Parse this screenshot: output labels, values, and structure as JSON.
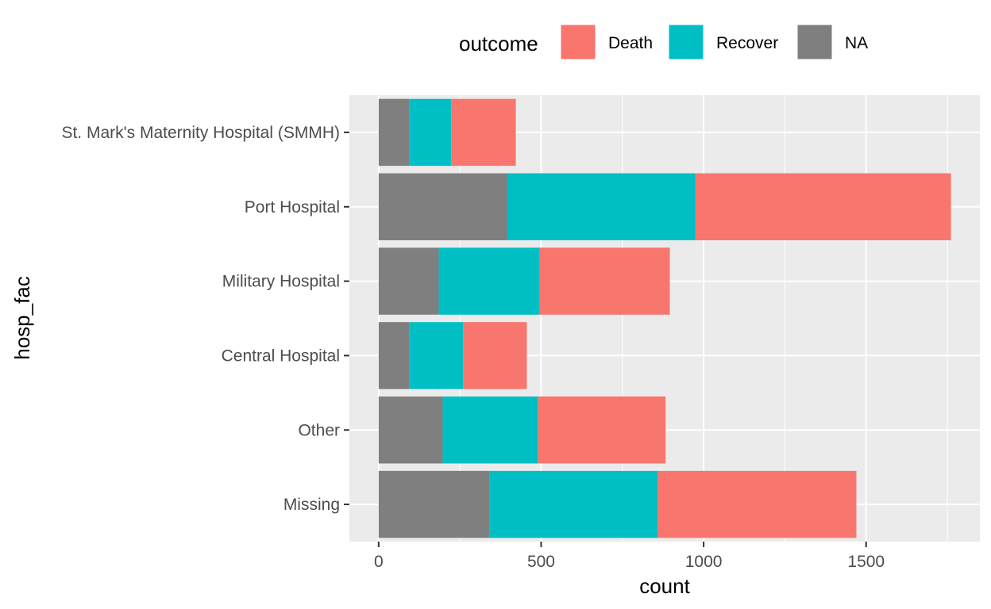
{
  "chart_data": {
    "type": "bar",
    "orientation": "horizontal",
    "stacked": true,
    "xlabel": "count",
    "ylabel": "hosp_fac",
    "xlim": [
      -90,
      1850
    ],
    "x_ticks": [
      "0",
      "500",
      "1000",
      "1500"
    ],
    "x_tick_values": [
      0,
      500,
      1000,
      1500
    ],
    "categories": [
      "St. Mark's Maternity Hospital (SMMH)",
      "Port Hospital",
      "Military Hospital",
      "Central Hospital",
      "Other",
      "Missing"
    ],
    "series": [
      {
        "name": "NA",
        "color": "#7f7f7f",
        "values": [
          95,
          395,
          185,
          95,
          197,
          342
        ]
      },
      {
        "name": "Recover",
        "color": "#00bfc4",
        "values": [
          128,
          580,
          310,
          165,
          293,
          517
        ]
      },
      {
        "name": "Death",
        "color": "#f8766d",
        "values": [
          199,
          786,
          401,
          196,
          393,
          611
        ]
      }
    ],
    "legend": {
      "title": "outcome",
      "position": "top",
      "items": [
        "Death",
        "Recover",
        "NA"
      ]
    },
    "panel_background": "#ebebeb",
    "grid": true
  }
}
